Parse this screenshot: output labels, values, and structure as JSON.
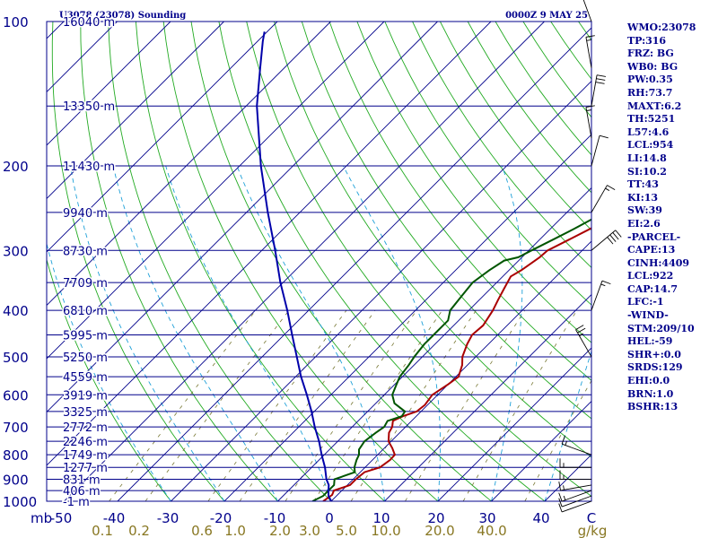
{
  "chart_data": {
    "type": "line",
    "title": "U3078 (23078) Sounding",
    "time": "0000Z  9 MAY 25",
    "pressure_unit": "mb",
    "mixing_ratio_unit": "g/kg",
    "pressure_levels": [
      100,
      200,
      300,
      400,
      500,
      600,
      700,
      800,
      900,
      1000
    ],
    "height_labels": [
      {
        "p": 100,
        "text": "16040 m"
      },
      {
        "p": 150,
        "text": "13350 m"
      },
      {
        "p": 200,
        "text": "11430 m"
      },
      {
        "p": 250,
        "text": "9940 m"
      },
      {
        "p": 300,
        "text": "8730 m"
      },
      {
        "p": 350,
        "text": "7709 m"
      },
      {
        "p": 400,
        "text": "6810 m"
      },
      {
        "p": 450,
        "text": "5995 m"
      },
      {
        "p": 500,
        "text": "5250 m"
      },
      {
        "p": 550,
        "text": "4559 m"
      },
      {
        "p": 600,
        "text": "3919 m"
      },
      {
        "p": 650,
        "text": "3325 m"
      },
      {
        "p": 700,
        "text": "2772 m"
      },
      {
        "p": 750,
        "text": "2246 m"
      },
      {
        "p": 800,
        "text": "1749 m"
      },
      {
        "p": 850,
        "text": "1277 m"
      },
      {
        "p": 900,
        "text": "831 m"
      },
      {
        "p": 950,
        "text": "406 m"
      },
      {
        "p": 1000,
        "text": "-1 m"
      }
    ],
    "temperature_ticks": [
      "-50",
      "-40",
      "-30",
      "-20",
      "-10",
      "0",
      "10",
      "20",
      "30",
      "40",
      "C"
    ],
    "mixing_ratio_ticks": [
      "0.1",
      "0.2",
      "0.6",
      "1.0",
      "2.0",
      "3.0",
      "5.0",
      "10.0",
      "20.0",
      "40.0",
      "g/kg"
    ],
    "xlim": [
      -50,
      50
    ],
    "ylim": [
      1000,
      100
    ],
    "series": [
      {
        "name": "temperature",
        "color": "#aa0000",
        "points": [
          [
            1000,
            -1.5
          ],
          [
            970,
            -1.0
          ],
          [
            950,
            -1.5
          ],
          [
            925,
            0.5
          ],
          [
            900,
            0.5
          ],
          [
            870,
            0.8
          ],
          [
            850,
            2.8
          ],
          [
            820,
            3.3
          ],
          [
            800,
            3.2
          ],
          [
            775,
            1.5
          ],
          [
            750,
            -0.5
          ],
          [
            720,
            -2.0
          ],
          [
            700,
            -2.5
          ],
          [
            680,
            -3.5
          ],
          [
            665,
            -2.5
          ],
          [
            650,
            -0.8
          ],
          [
            630,
            -0.5
          ],
          [
            600,
            -1.0
          ],
          [
            570,
            0.0
          ],
          [
            550,
            0.5
          ],
          [
            520,
            -1.0
          ],
          [
            500,
            -2.5
          ],
          [
            470,
            -4.0
          ],
          [
            450,
            -4.8
          ],
          [
            430,
            -4.5
          ],
          [
            400,
            -5.5
          ],
          [
            380,
            -6.5
          ],
          [
            360,
            -7.5
          ],
          [
            340,
            -8.5
          ],
          [
            330,
            -7.7
          ],
          [
            310,
            -6.7
          ],
          [
            300,
            -6.5
          ],
          [
            285,
            -4.5
          ],
          [
            270,
            -2.5
          ],
          [
            250,
            0.5
          ],
          [
            230,
            4.5
          ],
          [
            215,
            8.0
          ],
          [
            200,
            11.0
          ],
          [
            180,
            15.5
          ],
          [
            165,
            19.5
          ],
          [
            150,
            22.5
          ],
          [
            135,
            24.5
          ],
          [
            120,
            28.5
          ],
          [
            110,
            31.5
          ],
          [
            100,
            35.5
          ]
        ]
      },
      {
        "name": "dewpoint",
        "color": "#005500",
        "points": [
          [
            1000,
            -3.5
          ],
          [
            975,
            -2.5
          ],
          [
            950,
            -2.5
          ],
          [
            925,
            -2.5
          ],
          [
            900,
            -3.5
          ],
          [
            870,
            -1.0
          ],
          [
            850,
            -2.0
          ],
          [
            820,
            -3.0
          ],
          [
            800,
            -3.5
          ],
          [
            780,
            -4.5
          ],
          [
            750,
            -5.0
          ],
          [
            720,
            -4.5
          ],
          [
            700,
            -4.0
          ],
          [
            680,
            -4.5
          ],
          [
            665,
            -2.7
          ],
          [
            650,
            -3.0
          ],
          [
            625,
            -6.5
          ],
          [
            600,
            -8.5
          ],
          [
            575,
            -9.5
          ],
          [
            550,
            -10.5
          ],
          [
            520,
            -11.0
          ],
          [
            500,
            -11.5
          ],
          [
            470,
            -12.0
          ],
          [
            450,
            -12.0
          ],
          [
            420,
            -12.0
          ],
          [
            400,
            -13.5
          ],
          [
            375,
            -14.0
          ],
          [
            350,
            -14.5
          ],
          [
            330,
            -13.7
          ],
          [
            315,
            -12.7
          ],
          [
            310,
            -10.7
          ],
          [
            300,
            -9.5
          ],
          [
            285,
            -7.5
          ],
          [
            270,
            -5.5
          ],
          [
            250,
            -3.0
          ],
          [
            230,
            0.5
          ],
          [
            210,
            3.0
          ],
          [
            190,
            7.0
          ],
          [
            175,
            10.0
          ],
          [
            160,
            13.5
          ],
          [
            145,
            16.5
          ],
          [
            130,
            19.5
          ],
          [
            120,
            21.5
          ],
          [
            110,
            24.5
          ],
          [
            100,
            27.5
          ]
        ]
      },
      {
        "name": "parcel",
        "color": "#0000aa",
        "points": [
          [
            1000,
            0.0
          ],
          [
            975,
            -1.5
          ],
          [
            950,
            -2.5
          ],
          [
            925,
            -3.5
          ],
          [
            900,
            -5.0
          ],
          [
            850,
            -7.5
          ],
          [
            800,
            -10.5
          ],
          [
            750,
            -13.5
          ],
          [
            700,
            -17.0
          ],
          [
            650,
            -20.5
          ],
          [
            600,
            -24.5
          ],
          [
            550,
            -29.0
          ],
          [
            500,
            -33.5
          ],
          [
            450,
            -38.5
          ],
          [
            400,
            -44.0
          ],
          [
            350,
            -50.5
          ],
          [
            300,
            -57.5
          ],
          [
            250,
            -66.0
          ],
          [
            200,
            -76.0
          ],
          [
            150,
            -88.0
          ],
          [
            125,
            -94.5
          ],
          [
            110,
            -99.0
          ],
          [
            105,
            -100.5
          ]
        ]
      }
    ],
    "wind_barbs": [
      {
        "p": 1000,
        "dir": 250,
        "kt": 10
      },
      {
        "p": 975,
        "dir": 250,
        "kt": 10
      },
      {
        "p": 950,
        "dir": 250,
        "kt": 15
      },
      {
        "p": 925,
        "dir": 260,
        "kt": 15
      },
      {
        "p": 900,
        "dir": 270,
        "kt": 15
      },
      {
        "p": 850,
        "dir": 270,
        "kt": 15
      },
      {
        "p": 800,
        "dir": 290,
        "kt": 15
      },
      {
        "p": 500,
        "dir": 330,
        "kt": 25
      },
      {
        "p": 400,
        "dir": 20,
        "kt": 15
      },
      {
        "p": 300,
        "dir": 50,
        "kt": 40
      },
      {
        "p": 250,
        "dir": 30,
        "kt": 15
      },
      {
        "p": 200,
        "dir": 15,
        "kt": 10
      },
      {
        "p": 175,
        "dir": 350,
        "kt": 15
      },
      {
        "p": 150,
        "dir": 10,
        "kt": 30
      },
      {
        "p": 125,
        "dir": 350,
        "kt": 15
      },
      {
        "p": 100,
        "dir": 340,
        "kt": 10
      }
    ]
  },
  "indices": [
    "WMO:23078",
    "TP:316",
    "FRZ: BG",
    "WB0: BG",
    "PW:0.35",
    "RH:73.7",
    "MAXT:6.2",
    "TH:5251",
    "L57:4.6",
    "LCL:954",
    "LI:14.8",
    "SI:10.2",
    "TT:43",
    "KI:13",
    "SW:39",
    "EI:2.6",
    "-PARCEL-",
    "CAPE:13",
    "CINH:4409",
    "LCL:922",
    "CAP:14.7",
    "LFC:-1",
    "-WIND-",
    "STM:209/10",
    "HEL:-59",
    "SHR+:0.0",
    "SRDS:129",
    "EHI:0.0",
    "BRN:1.0",
    "BSHR:13"
  ],
  "colors": {
    "frame": "#00008b",
    "isobar": "#00008b",
    "isotherm": "#00008b",
    "dry_adiabat": "#22aa22",
    "moist_adiabat": "#1ea0d8",
    "mixing_ratio": "#777733",
    "height_text": "#00008b",
    "pressure_text": "#00008b",
    "mixing_text": "#887722",
    "wind": "#000000"
  }
}
